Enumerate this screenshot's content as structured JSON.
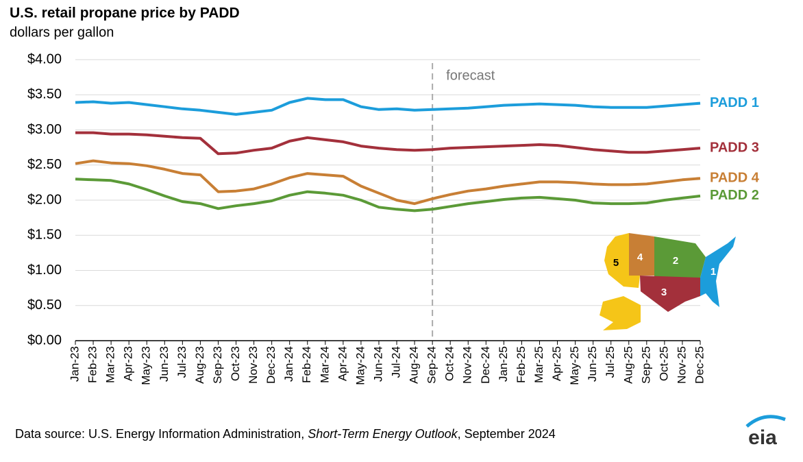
{
  "chart_data": {
    "type": "line",
    "title": "U.S. retail propane price by PADD",
    "subtitle": "dollars per gallon",
    "categories": [
      "Jan-23",
      "Feb-23",
      "Mar-23",
      "Apr-23",
      "May-23",
      "Jun-23",
      "Jul-23",
      "Aug-23",
      "Sep-23",
      "Oct-23",
      "Nov-23",
      "Dec-23",
      "Jan-24",
      "Feb-24",
      "Mar-24",
      "Apr-24",
      "May-24",
      "Jun-24",
      "Jul-24",
      "Aug-24",
      "Sep-24",
      "Oct-24",
      "Nov-24",
      "Dec-24",
      "Jan-25",
      "Feb-25",
      "Mar-25",
      "Apr-25",
      "May-25",
      "Jun-25",
      "Jul-25",
      "Aug-25",
      "Sep-25",
      "Oct-25",
      "Nov-25",
      "Dec-25"
    ],
    "series": [
      {
        "name": "PADD 1",
        "color": "#1c9ddb",
        "values": [
          3.39,
          3.4,
          3.38,
          3.39,
          3.36,
          3.33,
          3.3,
          3.28,
          3.25,
          3.22,
          3.25,
          3.28,
          3.39,
          3.45,
          3.43,
          3.43,
          3.33,
          3.29,
          3.3,
          3.28,
          3.29,
          3.3,
          3.31,
          3.33,
          3.35,
          3.36,
          3.37,
          3.36,
          3.35,
          3.33,
          3.32,
          3.32,
          3.32,
          3.34,
          3.36,
          3.38
        ]
      },
      {
        "name": "PADD 3",
        "color": "#a3303b",
        "values": [
          2.96,
          2.96,
          2.94,
          2.94,
          2.93,
          2.91,
          2.89,
          2.88,
          2.66,
          2.67,
          2.71,
          2.74,
          2.84,
          2.89,
          2.86,
          2.83,
          2.77,
          2.74,
          2.72,
          2.71,
          2.72,
          2.74,
          2.75,
          2.76,
          2.77,
          2.78,
          2.79,
          2.78,
          2.75,
          2.72,
          2.7,
          2.68,
          2.68,
          2.7,
          2.72,
          2.74
        ]
      },
      {
        "name": "PADD 4",
        "color": "#c87f35",
        "values": [
          2.52,
          2.56,
          2.53,
          2.52,
          2.49,
          2.44,
          2.38,
          2.36,
          2.12,
          2.13,
          2.16,
          2.23,
          2.32,
          2.38,
          2.36,
          2.34,
          2.2,
          2.1,
          2.0,
          1.95,
          2.02,
          2.08,
          2.13,
          2.16,
          2.2,
          2.23,
          2.26,
          2.26,
          2.25,
          2.23,
          2.22,
          2.22,
          2.23,
          2.26,
          2.29,
          2.31
        ]
      },
      {
        "name": "PADD 2",
        "color": "#5b9a37",
        "values": [
          2.3,
          2.29,
          2.28,
          2.23,
          2.15,
          2.06,
          1.98,
          1.95,
          1.88,
          1.92,
          1.95,
          1.99,
          2.07,
          2.12,
          2.1,
          2.07,
          2.0,
          1.9,
          1.87,
          1.85,
          1.87,
          1.91,
          1.95,
          1.98,
          2.01,
          2.03,
          2.04,
          2.02,
          2.0,
          1.96,
          1.95,
          1.95,
          1.96,
          2.0,
          2.03,
          2.06
        ]
      }
    ],
    "ylim": [
      0,
      4
    ],
    "yticks": [
      {
        "value": 0,
        "label": "$0.00"
      },
      {
        "value": 0.5,
        "label": "$0.50"
      },
      {
        "value": 1,
        "label": "$1.00"
      },
      {
        "value": 1.5,
        "label": "$1.50"
      },
      {
        "value": 2,
        "label": "$2.00"
      },
      {
        "value": 2.5,
        "label": "$2.50"
      },
      {
        "value": 3,
        "label": "$3.00"
      },
      {
        "value": 3.5,
        "label": "$3.50"
      },
      {
        "value": 4,
        "label": "$4.00"
      }
    ],
    "grid": true,
    "forecast_start": "Sep-24",
    "forecast_label": "forecast",
    "source": [
      "Data source: U.S. Energy Information Administration, ",
      "Short-Term Energy Outlook",
      ", September 2024"
    ],
    "logo": "eia"
  },
  "map": {
    "labels": [
      "1",
      "2",
      "3",
      "4",
      "5"
    ]
  }
}
